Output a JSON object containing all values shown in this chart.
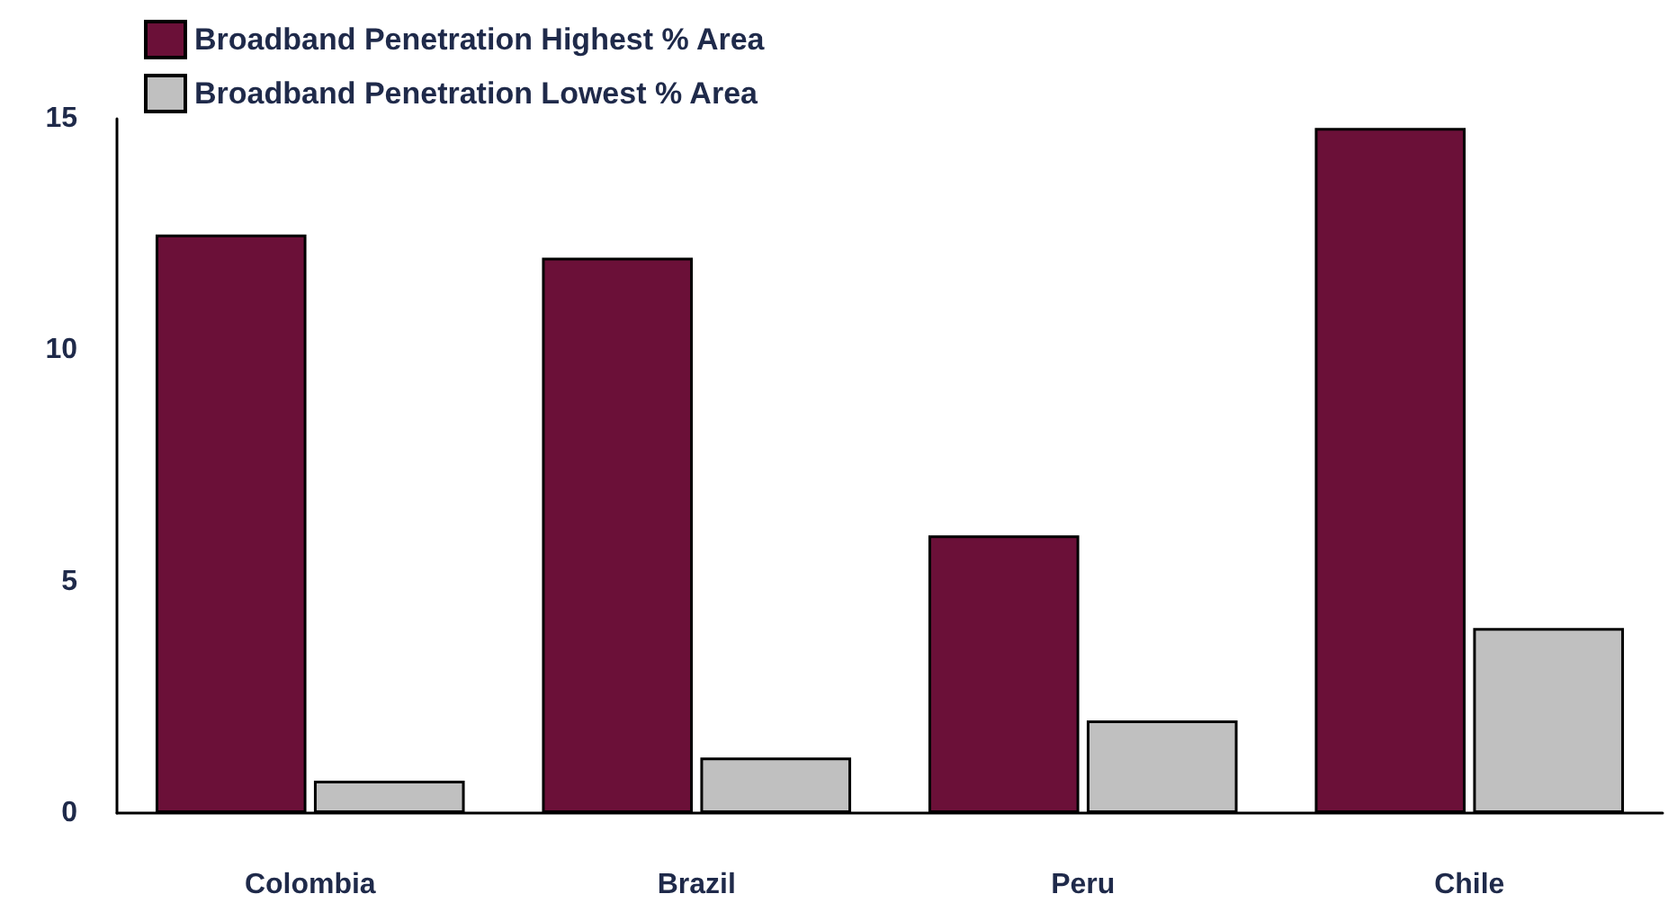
{
  "chart_data": {
    "type": "bar",
    "categories": [
      "Colombia",
      "Brazil",
      "Peru",
      "Chile"
    ],
    "series": [
      {
        "name": "Broadband Penetration Highest % Area",
        "color": "#6b1038",
        "values": [
          12.5,
          12.0,
          6.0,
          14.8
        ]
      },
      {
        "name": "Broadband Penetration Lowest % Area",
        "color": "#c0c0c0",
        "values": [
          0.7,
          1.2,
          2.0,
          4.0
        ]
      }
    ],
    "ylim": [
      0,
      15
    ],
    "yticks": [
      0,
      5,
      10,
      15
    ],
    "grid": false,
    "legend": "top left"
  }
}
